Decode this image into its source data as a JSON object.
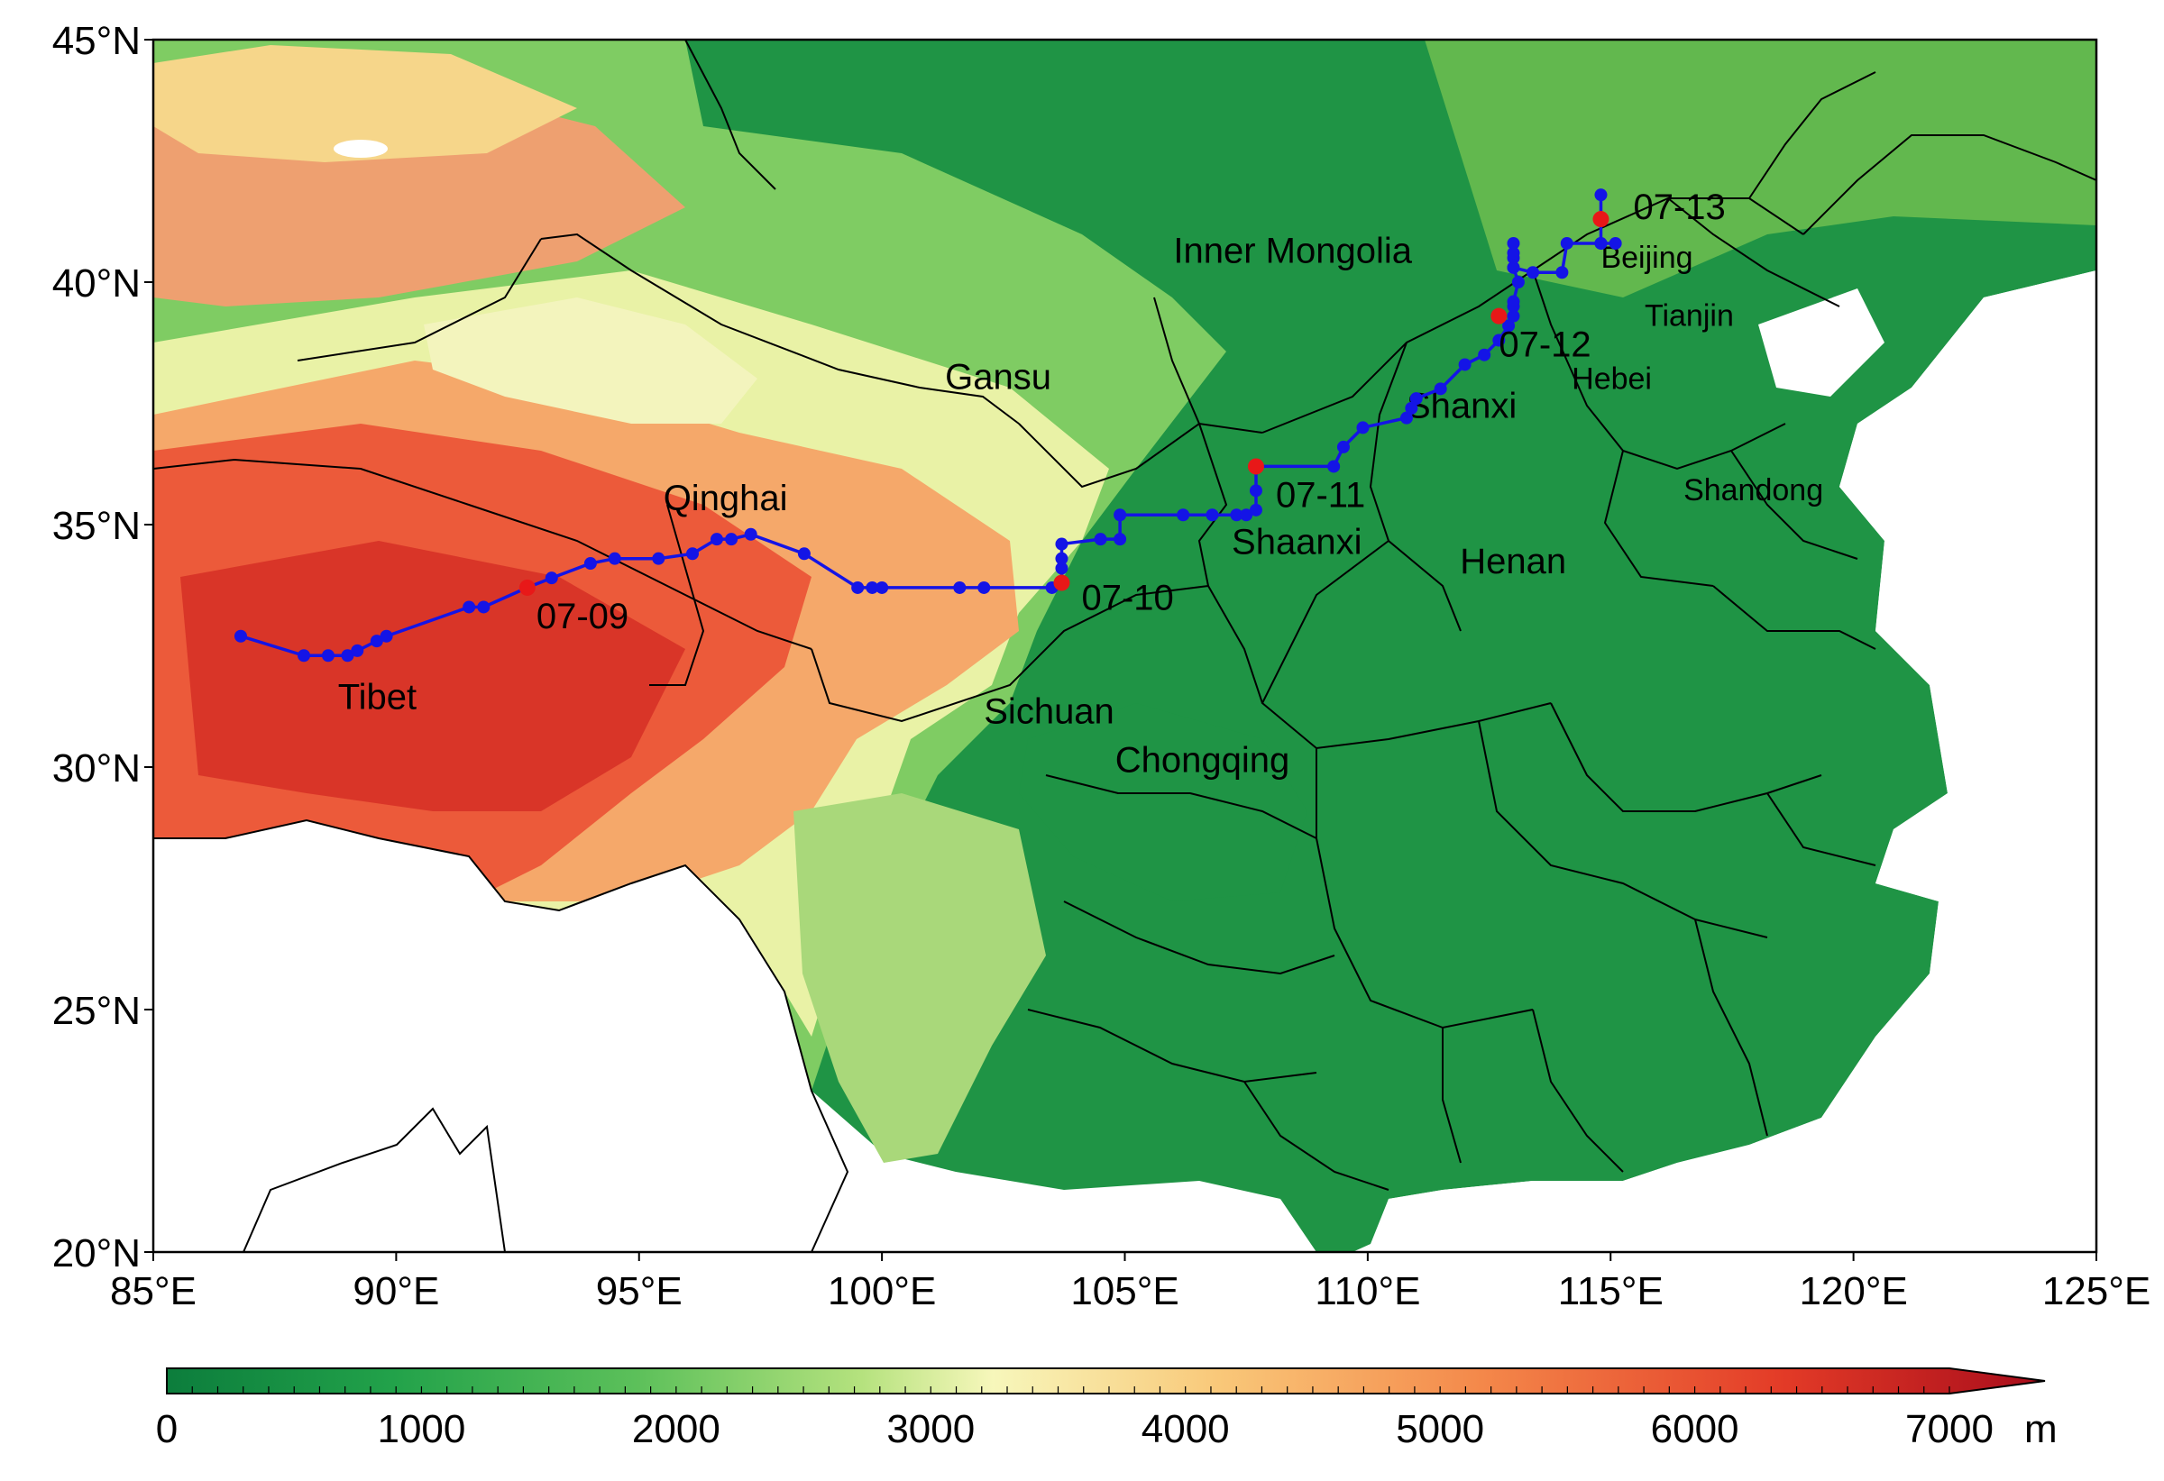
{
  "map": {
    "lon_ticks": [
      "85°E",
      "90°E",
      "95°E",
      "100°E",
      "105°E",
      "110°E",
      "115°E",
      "120°E",
      "125°E"
    ],
    "lat_ticks": [
      "45°N",
      "40°N",
      "35°N",
      "30°N",
      "25°N",
      "20°N"
    ],
    "extent": {
      "lon_min": 85,
      "lon_max": 125,
      "lat_min": 20,
      "lat_max": 45
    },
    "regions": [
      {
        "name": "Inner Mongolia",
        "lon": 106.0,
        "lat": 40.4
      },
      {
        "name": "Gansu",
        "lon": 101.3,
        "lat": 37.8
      },
      {
        "name": "Qinghai",
        "lon": 95.5,
        "lat": 35.3
      },
      {
        "name": "Tibet",
        "lon": 88.8,
        "lat": 31.2
      },
      {
        "name": "Sichuan",
        "lon": 102.1,
        "lat": 30.9
      },
      {
        "name": "Chongqing",
        "lon": 104.8,
        "lat": 29.9
      },
      {
        "name": "Shaanxi",
        "lon": 107.2,
        "lat": 34.4
      },
      {
        "name": "Shanxi",
        "lon": 110.8,
        "lat": 37.2
      },
      {
        "name": "Henan",
        "lon": 111.9,
        "lat": 34.0
      },
      {
        "name": "Hebei",
        "lon": 114.2,
        "lat": 37.8
      },
      {
        "name": "Shandong",
        "lon": 116.5,
        "lat": 35.5
      },
      {
        "name": "Beijing",
        "lon": 114.8,
        "lat": 40.3
      },
      {
        "name": "Tianjin",
        "lon": 115.7,
        "lat": 39.1
      }
    ],
    "track": [
      [
        86.8,
        32.7
      ],
      [
        88.1,
        32.3
      ],
      [
        88.6,
        32.3
      ],
      [
        89.0,
        32.3
      ],
      [
        89.2,
        32.4
      ],
      [
        89.6,
        32.6
      ],
      [
        89.8,
        32.7
      ],
      [
        91.5,
        33.3
      ],
      [
        91.8,
        33.3
      ],
      [
        92.7,
        33.7
      ],
      [
        93.2,
        33.9
      ],
      [
        94.0,
        34.2
      ],
      [
        94.5,
        34.3
      ],
      [
        95.4,
        34.3
      ],
      [
        96.1,
        34.4
      ],
      [
        96.6,
        34.7
      ],
      [
        96.9,
        34.7
      ],
      [
        97.3,
        34.8
      ],
      [
        98.4,
        34.4
      ],
      [
        99.5,
        33.7
      ],
      [
        99.8,
        33.7
      ],
      [
        100.0,
        33.7
      ],
      [
        101.6,
        33.7
      ],
      [
        102.1,
        33.7
      ],
      [
        103.5,
        33.7
      ],
      [
        103.7,
        33.8
      ],
      [
        103.7,
        34.1
      ],
      [
        103.7,
        34.3
      ],
      [
        103.7,
        34.6
      ],
      [
        104.5,
        34.7
      ],
      [
        104.9,
        34.7
      ],
      [
        104.9,
        35.2
      ],
      [
        106.2,
        35.2
      ],
      [
        106.8,
        35.2
      ],
      [
        107.3,
        35.2
      ],
      [
        107.5,
        35.2
      ],
      [
        107.7,
        35.3
      ],
      [
        107.7,
        35.7
      ],
      [
        107.7,
        36.2
      ],
      [
        109.3,
        36.2
      ],
      [
        109.5,
        36.6
      ],
      [
        109.9,
        37.0
      ],
      [
        110.8,
        37.2
      ],
      [
        110.9,
        37.4
      ],
      [
        111.0,
        37.6
      ],
      [
        111.5,
        37.8
      ],
      [
        112.0,
        38.3
      ],
      [
        112.4,
        38.5
      ],
      [
        112.7,
        38.8
      ],
      [
        112.9,
        39.1
      ],
      [
        113.0,
        39.3
      ],
      [
        113.0,
        39.5
      ],
      [
        113.0,
        39.6
      ],
      [
        113.1,
        40.0
      ],
      [
        113.0,
        40.3
      ],
      [
        113.0,
        40.5
      ],
      [
        113.0,
        40.6
      ],
      [
        113.0,
        40.8
      ],
      [
        113.0,
        40.3
      ],
      [
        113.4,
        40.2
      ],
      [
        114.0,
        40.2
      ],
      [
        114.1,
        40.8
      ],
      [
        114.8,
        40.8
      ],
      [
        115.1,
        40.8
      ],
      [
        114.8,
        40.8
      ],
      [
        114.8,
        41.8
      ]
    ],
    "daily_markers": [
      {
        "date": "07-09",
        "lon": 92.7,
        "lat": 33.7
      },
      {
        "date": "07-10",
        "lon": 103.7,
        "lat": 33.8
      },
      {
        "date": "07-11",
        "lon": 107.7,
        "lat": 36.2
      },
      {
        "date": "07-12",
        "lon": 112.7,
        "lat": 39.3
      },
      {
        "date": "07-13",
        "lon": 114.8,
        "lat": 41.3
      }
    ],
    "colors": {
      "track": "#1414e6",
      "daily": "#e81818"
    }
  },
  "colorbar": {
    "ticks": [
      "0",
      "1000",
      "2000",
      "3000",
      "4000",
      "5000",
      "6000",
      "7000"
    ],
    "unit": "m",
    "range": [
      0,
      7000
    ],
    "colors": [
      "#0c7d3c",
      "#22a24a",
      "#5cc05a",
      "#b5e27e",
      "#f7f7bb",
      "#f9c879",
      "#f4884a",
      "#e33b27",
      "#a80c1b"
    ]
  }
}
